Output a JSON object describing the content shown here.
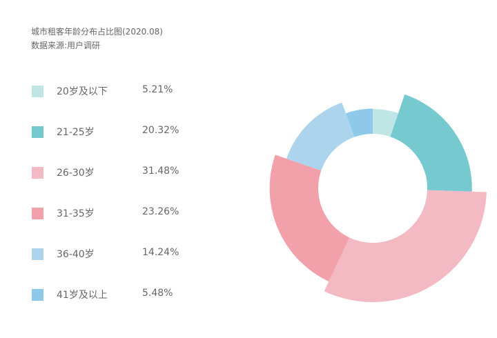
{
  "title": "城市租客年龄分布占比图(2020.08)",
  "source": "数据来源:用户调研",
  "chart_data": {
    "type": "pie",
    "variant": "rose-donut",
    "title": "城市租客年龄分布占比图(2020.08)",
    "categories": [
      "20岁及以下",
      "21-25岁",
      "26-30岁",
      "31-35岁",
      "36-40岁",
      "41岁及以上"
    ],
    "values": [
      5.21,
      20.32,
      31.48,
      23.26,
      14.24,
      5.48
    ],
    "value_labels": [
      "5.21%",
      "20.32%",
      "31.48%",
      "23.26%",
      "14.24%",
      "5.48%"
    ],
    "colors": [
      "#c0e5e5",
      "#76c9ce",
      "#f4bac3",
      "#f2a1aa",
      "#acd5ed",
      "#8ec9ea"
    ],
    "legend_position": "left"
  }
}
